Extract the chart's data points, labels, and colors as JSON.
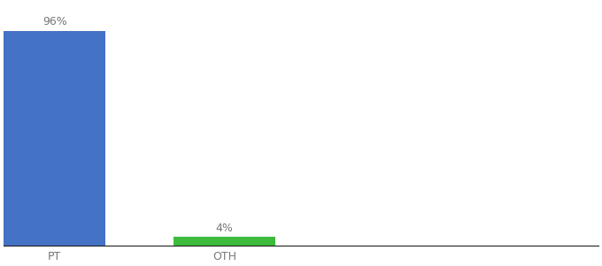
{
  "categories": [
    "PT",
    "OTH"
  ],
  "values": [
    96,
    4
  ],
  "bar_colors": [
    "#4472c4",
    "#3dbb3d"
  ],
  "bar_labels": [
    "96%",
    "4%"
  ],
  "background_color": "#ffffff",
  "ylim": [
    0,
    108
  ],
  "label_fontsize": 9,
  "tick_fontsize": 9,
  "bar_width": 0.6,
  "xlim": [
    -0.3,
    3.2
  ]
}
